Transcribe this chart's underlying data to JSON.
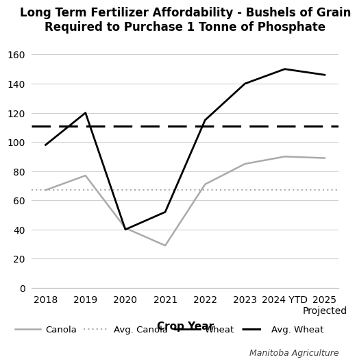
{
  "title": "Long Term Fertilizer Affordability - Bushels of Grain\nRequired to Purchase 1 Tonne of Phosphate",
  "xlabel": "Crop Year",
  "years_display": [
    "2018",
    "2019",
    "2020",
    "2021",
    "2022",
    "2023",
    "2024 YTD",
    "2025\nProjected"
  ],
  "canola": [
    67,
    77,
    41,
    29,
    71,
    85,
    90,
    89
  ],
  "wheat": [
    98,
    120,
    40,
    52,
    115,
    140,
    150,
    146
  ],
  "avg_canola": 67,
  "avg_wheat": 111,
  "ylim": [
    0,
    170
  ],
  "yticks": [
    0,
    20,
    40,
    60,
    80,
    100,
    120,
    140,
    160
  ],
  "canola_color": "#aaaaaa",
  "wheat_color": "#000000",
  "avg_canola_color": "#aaaaaa",
  "avg_wheat_color": "#000000",
  "title_fontsize": 12,
  "axis_label_fontsize": 11,
  "tick_fontsize": 10,
  "legend_fontsize": 9.5,
  "watermark": "Manitoba Agriculture",
  "background_color": "#ffffff",
  "grid_color": "#d0d0d0"
}
